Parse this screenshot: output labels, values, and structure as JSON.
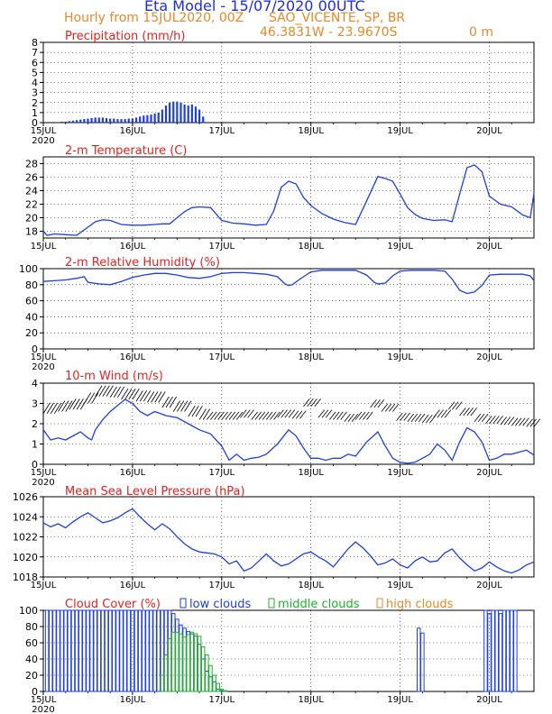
{
  "header": {
    "title": "Eta Model - 15/07/2020 00UTC",
    "subtitle_left": "Hourly from 15JUL2020, 00Z",
    "location": "SAO_VICENTE, SP, BR",
    "coords": "46.3831W - 23.9670S",
    "elevation": "0   m"
  },
  "colors": {
    "title": "#1f2fd6",
    "subtitle": "#e6892a",
    "panel_title": "#e52222",
    "series": "#1f3fe0",
    "arrows": "#000000",
    "low_clouds": "#1f3fe0",
    "middle_clouds": "#22b02a",
    "high_clouds": "#e6892a",
    "frame": "#000000"
  },
  "x_axis": {
    "range_hours": [
      0,
      132
    ],
    "ticks": [
      {
        "hour": 0,
        "label": "15JUL"
      },
      {
        "hour": 24,
        "label": "16JUL"
      },
      {
        "hour": 48,
        "label": "17JUL"
      },
      {
        "hour": 72,
        "label": "18JUL"
      },
      {
        "hour": 96,
        "label": "19JUL"
      },
      {
        "hour": 120,
        "label": "20JUL"
      }
    ],
    "year_label": "2020"
  },
  "chart_data": [
    {
      "type": "bar",
      "id": "precip",
      "title": "Precipitation (mm/h)",
      "ylim": [
        0,
        8
      ],
      "yticks": [
        0,
        1,
        2,
        3,
        4,
        5,
        6,
        7,
        8
      ],
      "hours": [
        4,
        5,
        6,
        7,
        8,
        9,
        10,
        11,
        12,
        13,
        14,
        15,
        16,
        17,
        18,
        19,
        20,
        21,
        22,
        23,
        24,
        25,
        26,
        27,
        28,
        29,
        30,
        31,
        32,
        33,
        34,
        35,
        36,
        37,
        38,
        39,
        40,
        41,
        42,
        43
      ],
      "values": [
        0.05,
        0.1,
        0.1,
        0.15,
        0.2,
        0.25,
        0.3,
        0.35,
        0.4,
        0.45,
        0.5,
        0.5,
        0.5,
        0.45,
        0.4,
        0.4,
        0.35,
        0.35,
        0.35,
        0.4,
        0.4,
        0.5,
        0.6,
        0.7,
        0.75,
        0.8,
        0.9,
        1.0,
        1.3,
        1.7,
        2.0,
        2.1,
        2.1,
        2.0,
        1.8,
        1.7,
        1.8,
        1.6,
        1.3,
        0.6
      ]
    },
    {
      "type": "line",
      "id": "temperature",
      "title": "2-m Temperature (C)",
      "ylim": [
        17,
        29
      ],
      "yticks": [
        18,
        20,
        22,
        24,
        26,
        28
      ],
      "x": [
        0,
        1,
        3,
        6,
        9,
        12,
        14,
        16,
        18,
        21,
        24,
        27,
        30,
        32,
        34,
        36,
        38,
        40,
        42,
        45,
        48,
        51,
        54,
        57,
        60,
        62,
        64,
        66,
        68,
        70,
        72,
        75,
        78,
        81,
        84,
        87,
        90,
        92,
        94,
        96,
        98,
        100,
        102,
        105,
        108,
        110,
        112,
        114,
        116,
        118,
        120,
        123,
        126,
        129,
        131,
        132
      ],
      "values": [
        18.0,
        17.4,
        17.6,
        17.5,
        17.4,
        18.6,
        19.4,
        19.7,
        19.6,
        19.0,
        18.9,
        18.9,
        19.0,
        19.1,
        19.1,
        20.0,
        20.9,
        21.5,
        21.6,
        21.5,
        19.6,
        19.2,
        19.1,
        18.9,
        19.0,
        21.0,
        24.5,
        25.4,
        25.0,
        23.0,
        21.8,
        20.6,
        19.8,
        19.3,
        19.0,
        22.5,
        26.1,
        25.8,
        25.4,
        23.5,
        21.5,
        20.5,
        19.9,
        19.6,
        19.7,
        19.4,
        23.5,
        27.4,
        27.8,
        26.8,
        23.2,
        22.0,
        21.6,
        20.4,
        20.0,
        23.6
      ]
    },
    {
      "type": "line",
      "id": "humidity",
      "title": "2-m Relative Humidity (%)",
      "ylim": [
        0,
        100
      ],
      "yticks": [
        0,
        20,
        40,
        60,
        80,
        100
      ],
      "x": [
        0,
        3,
        6,
        9,
        11,
        12,
        15,
        18,
        21,
        24,
        27,
        30,
        33,
        36,
        39,
        42,
        45,
        48,
        51,
        54,
        57,
        60,
        63,
        65,
        66,
        67,
        69,
        72,
        75,
        78,
        81,
        84,
        87,
        89,
        90,
        92,
        94,
        96,
        99,
        102,
        105,
        108,
        110,
        112,
        114,
        116,
        118,
        120,
        123,
        126,
        129,
        131,
        132
      ],
      "values": [
        84,
        85,
        86,
        88,
        90,
        83,
        81,
        80,
        84,
        89,
        92,
        94,
        94,
        92,
        89,
        88,
        90,
        94,
        95,
        95,
        94,
        93,
        90,
        81,
        79,
        80,
        87,
        96,
        98,
        98,
        98,
        98,
        92,
        83,
        81,
        82,
        91,
        97,
        98,
        98,
        98,
        97,
        87,
        73,
        69,
        71,
        79,
        92,
        93,
        93,
        93,
        91,
        85
      ]
    },
    {
      "type": "line",
      "id": "wind",
      "title": "10-m Wind (m/s)",
      "ylim": [
        0,
        4
      ],
      "yticks": [
        0,
        1,
        2,
        3,
        4
      ],
      "x": [
        0,
        2,
        4,
        6,
        8,
        10,
        12,
        13,
        14,
        16,
        18,
        20,
        22,
        24,
        26,
        28,
        30,
        33,
        36,
        39,
        42,
        45,
        48,
        50,
        52,
        54,
        56,
        58,
        60,
        63,
        66,
        68,
        70,
        72,
        74,
        76,
        78,
        80,
        82,
        84,
        87,
        90,
        92,
        94,
        96,
        98,
        100,
        102,
        104,
        106,
        108,
        110,
        112,
        114,
        116,
        118,
        120,
        122,
        124,
        126,
        128,
        130,
        132
      ],
      "values": [
        1.7,
        1.2,
        1.3,
        1.2,
        1.4,
        1.6,
        1.3,
        1.2,
        1.7,
        2.2,
        2.6,
        2.9,
        3.2,
        3.0,
        2.6,
        2.4,
        2.6,
        2.4,
        2.3,
        2.0,
        1.7,
        1.5,
        0.9,
        0.2,
        0.5,
        0.2,
        0.3,
        0.35,
        0.5,
        1.0,
        1.7,
        1.4,
        0.8,
        0.3,
        0.3,
        0.2,
        0.3,
        0.3,
        0.5,
        0.4,
        1.1,
        1.6,
        0.9,
        0.3,
        0.1,
        0.05,
        0.1,
        0.3,
        0.5,
        1.0,
        0.7,
        0.2,
        1.1,
        1.8,
        1.6,
        1.1,
        0.2,
        0.3,
        0.5,
        0.5,
        0.6,
        0.7,
        0.45
      ]
    },
    {
      "type": "line",
      "id": "pressure",
      "title": "Mean Sea Level Pressure (hPa)",
      "ylim": [
        1018,
        1026
      ],
      "yticks": [
        1018,
        1020,
        1022,
        1024,
        1026
      ],
      "x": [
        0,
        2,
        4,
        6,
        8,
        10,
        12,
        14,
        16,
        18,
        20,
        22,
        24,
        26,
        28,
        30,
        32,
        34,
        36,
        38,
        40,
        42,
        44,
        46,
        48,
        50,
        52,
        54,
        56,
        58,
        60,
        62,
        64,
        66,
        68,
        70,
        72,
        74,
        76,
        78,
        80,
        82,
        84,
        86,
        88,
        90,
        92,
        94,
        96,
        98,
        100,
        102,
        104,
        106,
        108,
        110,
        112,
        114,
        116,
        118,
        120,
        122,
        124,
        126,
        128,
        130,
        132
      ],
      "values": [
        1023.4,
        1023.0,
        1023.3,
        1022.9,
        1023.5,
        1024.0,
        1024.4,
        1023.9,
        1023.4,
        1023.6,
        1023.9,
        1024.4,
        1024.8,
        1024.0,
        1023.3,
        1022.7,
        1023.3,
        1022.8,
        1022.0,
        1021.3,
        1020.8,
        1020.5,
        1020.4,
        1020.3,
        1020.0,
        1019.3,
        1019.6,
        1018.6,
        1018.9,
        1019.6,
        1020.3,
        1019.6,
        1019.1,
        1019.3,
        1019.8,
        1020.3,
        1020.5,
        1020.0,
        1019.6,
        1019.0,
        1019.9,
        1020.8,
        1021.5,
        1020.9,
        1020.1,
        1019.2,
        1019.4,
        1019.8,
        1019.2,
        1018.9,
        1019.6,
        1020.0,
        1019.5,
        1019.6,
        1020.4,
        1020.8,
        1019.9,
        1019.2,
        1018.6,
        1018.9,
        1019.5,
        1019.0,
        1018.6,
        1018.4,
        1018.7,
        1019.2,
        1019.5
      ]
    },
    {
      "type": "bar",
      "id": "clouds",
      "title": "Cloud Cover (%)",
      "ylim": [
        0,
        100
      ],
      "yticks": [
        0,
        20,
        40,
        60,
        80,
        100
      ],
      "legend": [
        "low clouds",
        "middle clouds",
        "high clouds"
      ],
      "series": [
        {
          "name": "low clouds",
          "hours": [
            1,
            2,
            3,
            4,
            5,
            6,
            7,
            8,
            9,
            10,
            11,
            12,
            13,
            14,
            15,
            16,
            17,
            18,
            19,
            20,
            21,
            22,
            23,
            24,
            25,
            26,
            27,
            28,
            29,
            30,
            31,
            32,
            33,
            34,
            35,
            36,
            37,
            38,
            39,
            40,
            41,
            42,
            43,
            44,
            45,
            46,
            47,
            48,
            101,
            102,
            119,
            120,
            121,
            122,
            123,
            124,
            125,
            126,
            127
          ],
          "values": [
            100,
            100,
            100,
            100,
            100,
            100,
            100,
            100,
            100,
            100,
            100,
            100,
            100,
            100,
            100,
            100,
            100,
            100,
            100,
            100,
            100,
            100,
            100,
            100,
            100,
            100,
            100,
            100,
            100,
            100,
            100,
            100,
            100,
            100,
            96,
            89,
            82,
            78,
            74,
            71,
            68,
            58,
            40,
            25,
            18,
            12,
            3,
            1,
            78,
            72,
            100,
            96,
            100,
            100,
            96,
            100,
            100,
            100,
            100
          ]
        },
        {
          "name": "middle clouds",
          "hours": [
            32,
            33,
            34,
            35,
            36,
            37,
            38,
            39,
            40,
            41,
            42,
            43,
            44,
            45,
            46,
            47,
            48,
            49
          ],
          "values": [
            20,
            45,
            65,
            73,
            73,
            71,
            67,
            70,
            73,
            71,
            68,
            55,
            45,
            32,
            20,
            10,
            3,
            1
          ]
        }
      ]
    }
  ]
}
